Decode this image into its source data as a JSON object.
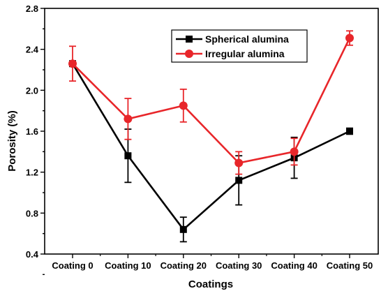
{
  "chart_data": {
    "type": "line",
    "xlabel": "Coatings",
    "ylabel": "Porosity (%)",
    "categories": [
      "Coating 0",
      "Coating 10",
      "Coating 20",
      "Coating 30",
      "Coating 40",
      "Coating 50"
    ],
    "ylim": [
      0.4,
      2.8
    ],
    "yticks": [
      0.4,
      0.8,
      1.2,
      1.6,
      2.0,
      2.4,
      2.8
    ],
    "ytick_labels": [
      "0.4",
      "0.8",
      "1.2",
      "1.6",
      "2.0",
      "2.4",
      "2.8"
    ],
    "grid": false,
    "legend_position": "top-right",
    "series": [
      {
        "name": "Spherical alumina",
        "color": "#000000",
        "marker": "square",
        "values": [
          2.26,
          1.36,
          0.64,
          1.12,
          1.34,
          1.6
        ],
        "errors": [
          0.02,
          0.26,
          0.12,
          0.24,
          0.2,
          0.03
        ]
      },
      {
        "name": "Irregular alumina",
        "color": "#e8262a",
        "marker": "circle",
        "values": [
          2.26,
          1.72,
          1.85,
          1.29,
          1.4,
          2.51
        ],
        "errors": [
          0.17,
          0.2,
          0.16,
          0.11,
          0.13,
          0.07
        ]
      }
    ]
  }
}
